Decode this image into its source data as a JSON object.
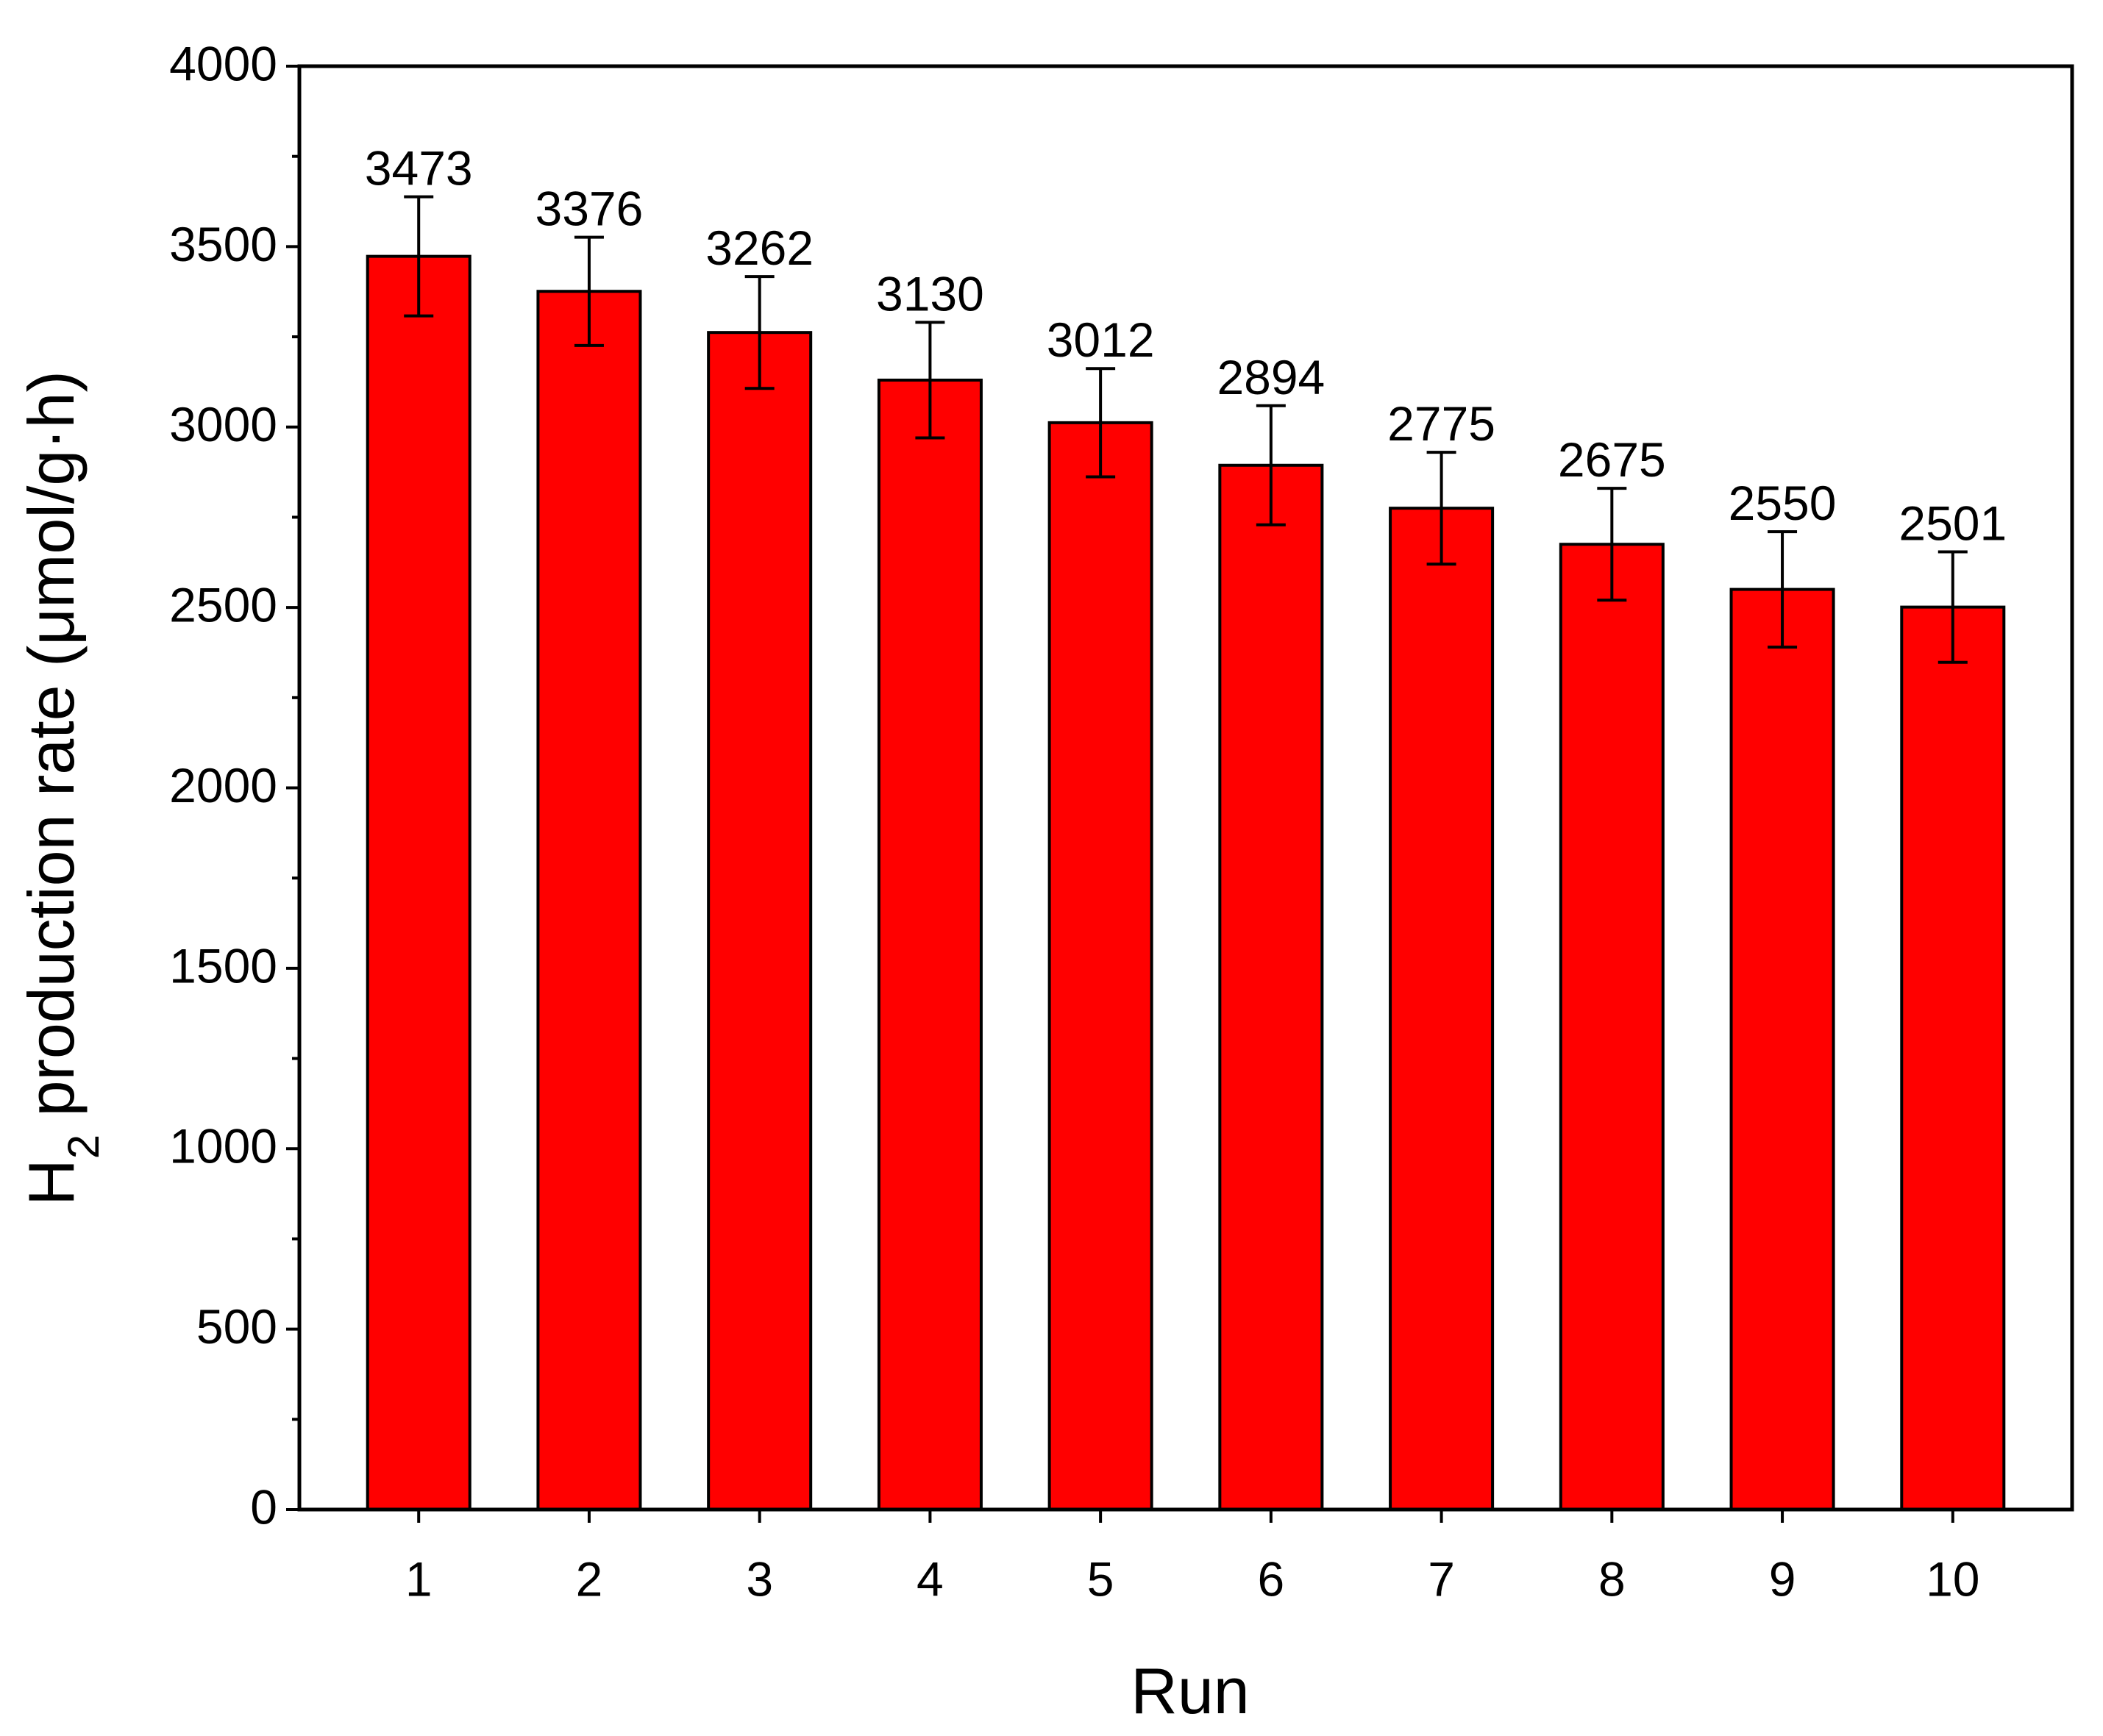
{
  "chart_data": {
    "type": "bar",
    "x_label": "Run",
    "y_label": [
      "H",
      "2",
      " production rate (μmol/g·h)"
    ],
    "categories": [
      "1",
      "2",
      "3",
      "4",
      "5",
      "6",
      "7",
      "8",
      "9",
      "10"
    ],
    "values": [
      3473,
      3376,
      3262,
      3130,
      3012,
      2894,
      2775,
      2675,
      2550,
      2501
    ],
    "errors": [
      165,
      150,
      155,
      160,
      150,
      165,
      155,
      155,
      160,
      153
    ],
    "color": "#ff0000",
    "ylim": [
      0,
      4000
    ],
    "yticks": [
      0,
      500,
      1000,
      1500,
      2000,
      2500,
      3000,
      3500,
      4000
    ]
  }
}
